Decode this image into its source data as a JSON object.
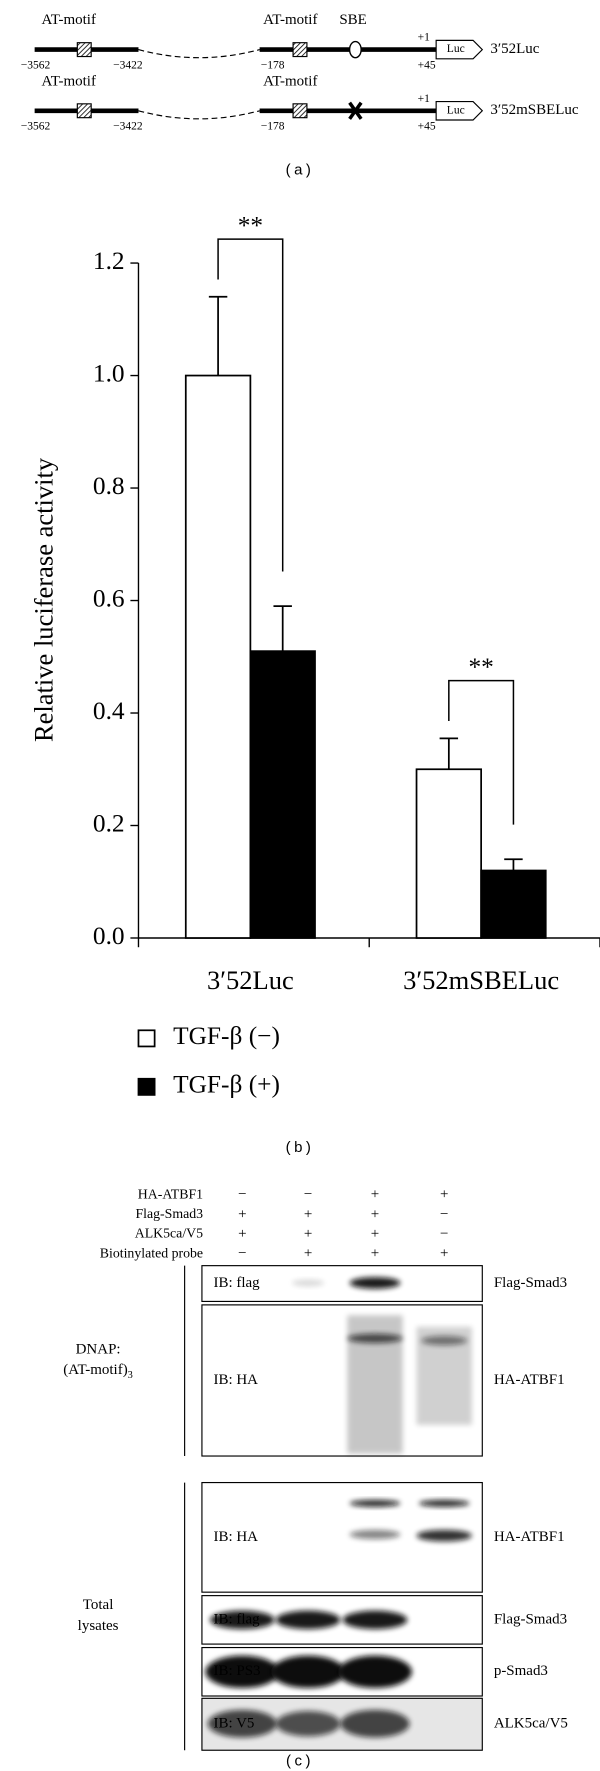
{
  "panel_a": {
    "constructs": [
      {
        "upstream_label": "AT-motif",
        "upstream_start": "−3562",
        "upstream_end": "−3422",
        "proximal_label": "AT-motif",
        "sbe_label": "SBE",
        "proximal_start": "−178",
        "tss": "+1",
        "end": "+45",
        "reporter": "Luc",
        "name": "3′52Luc"
      },
      {
        "upstream_label": "AT-motif",
        "upstream_start": "−3562",
        "upstream_end": "−3422",
        "proximal_label": "AT-motif",
        "proximal_start": "−178",
        "tss": "+1",
        "end": "+45",
        "reporter": "Luc",
        "name": "3′52mSBELuc"
      }
    ],
    "caption": "(a)"
  },
  "chart_data": {
    "type": "bar",
    "y_label": "Relative luciferase activity",
    "categories": [
      "3′52Luc",
      "3′52mSBELuc"
    ],
    "series": [
      {
        "name": "TGF-β (−)",
        "color": "#ffffff",
        "values": [
          1.0,
          0.3
        ],
        "errors": [
          0.14,
          0.055
        ]
      },
      {
        "name": "TGF-β (+)",
        "color": "#000000",
        "values": [
          0.51,
          0.12
        ],
        "errors": [
          0.08,
          0.02
        ]
      }
    ],
    "annotations": [
      "**",
      "**"
    ],
    "ylim": [
      0,
      1.2
    ],
    "yticks": [
      {
        "value": 0,
        "label": "0.0"
      },
      {
        "value": 0.2,
        "label": "0.2"
      },
      {
        "value": 0.4,
        "label": "0.4"
      },
      {
        "value": 0.6,
        "label": "0.6"
      },
      {
        "value": 0.8,
        "label": "0.8"
      },
      {
        "value": 1,
        "label": "1.0"
      },
      {
        "value": 1.2,
        "label": "1.2"
      }
    ],
    "caption": "(b)"
  },
  "panel_c": {
    "conditions": [
      {
        "label": "HA-ATBF1",
        "lanes": [
          "−",
          "−",
          "+",
          "+"
        ]
      },
      {
        "label": "Flag-Smad3",
        "lanes": [
          "+",
          "+",
          "+",
          "−"
        ]
      },
      {
        "label": "ALK5ca/V5",
        "lanes": [
          "+",
          "+",
          "+",
          "−"
        ]
      },
      {
        "label": "Biotinylated probe",
        "lanes": [
          "−",
          "+",
          "+",
          "+"
        ]
      }
    ],
    "groups": [
      {
        "label_lines": [
          "DNAP:",
          "(AT-motif)"
        ],
        "subscript": "3",
        "blots": [
          {
            "antibody": "IB: flag",
            "target": "Flag-Smad3"
          },
          {
            "antibody": "IB: HA",
            "target": "HA-ATBF1"
          }
        ]
      },
      {
        "label_lines": [
          "Total",
          "lysates"
        ],
        "blots": [
          {
            "antibody": "IB: HA",
            "target": "HA-ATBF1"
          },
          {
            "antibody": "IB: flag",
            "target": "Flag-Smad3"
          },
          {
            "antibody": "IB: PS3",
            "target": "p-Smad3"
          },
          {
            "antibody": "IB: V5",
            "target": "ALK5ca/V5"
          }
        ]
      }
    ],
    "caption": "(c)"
  }
}
